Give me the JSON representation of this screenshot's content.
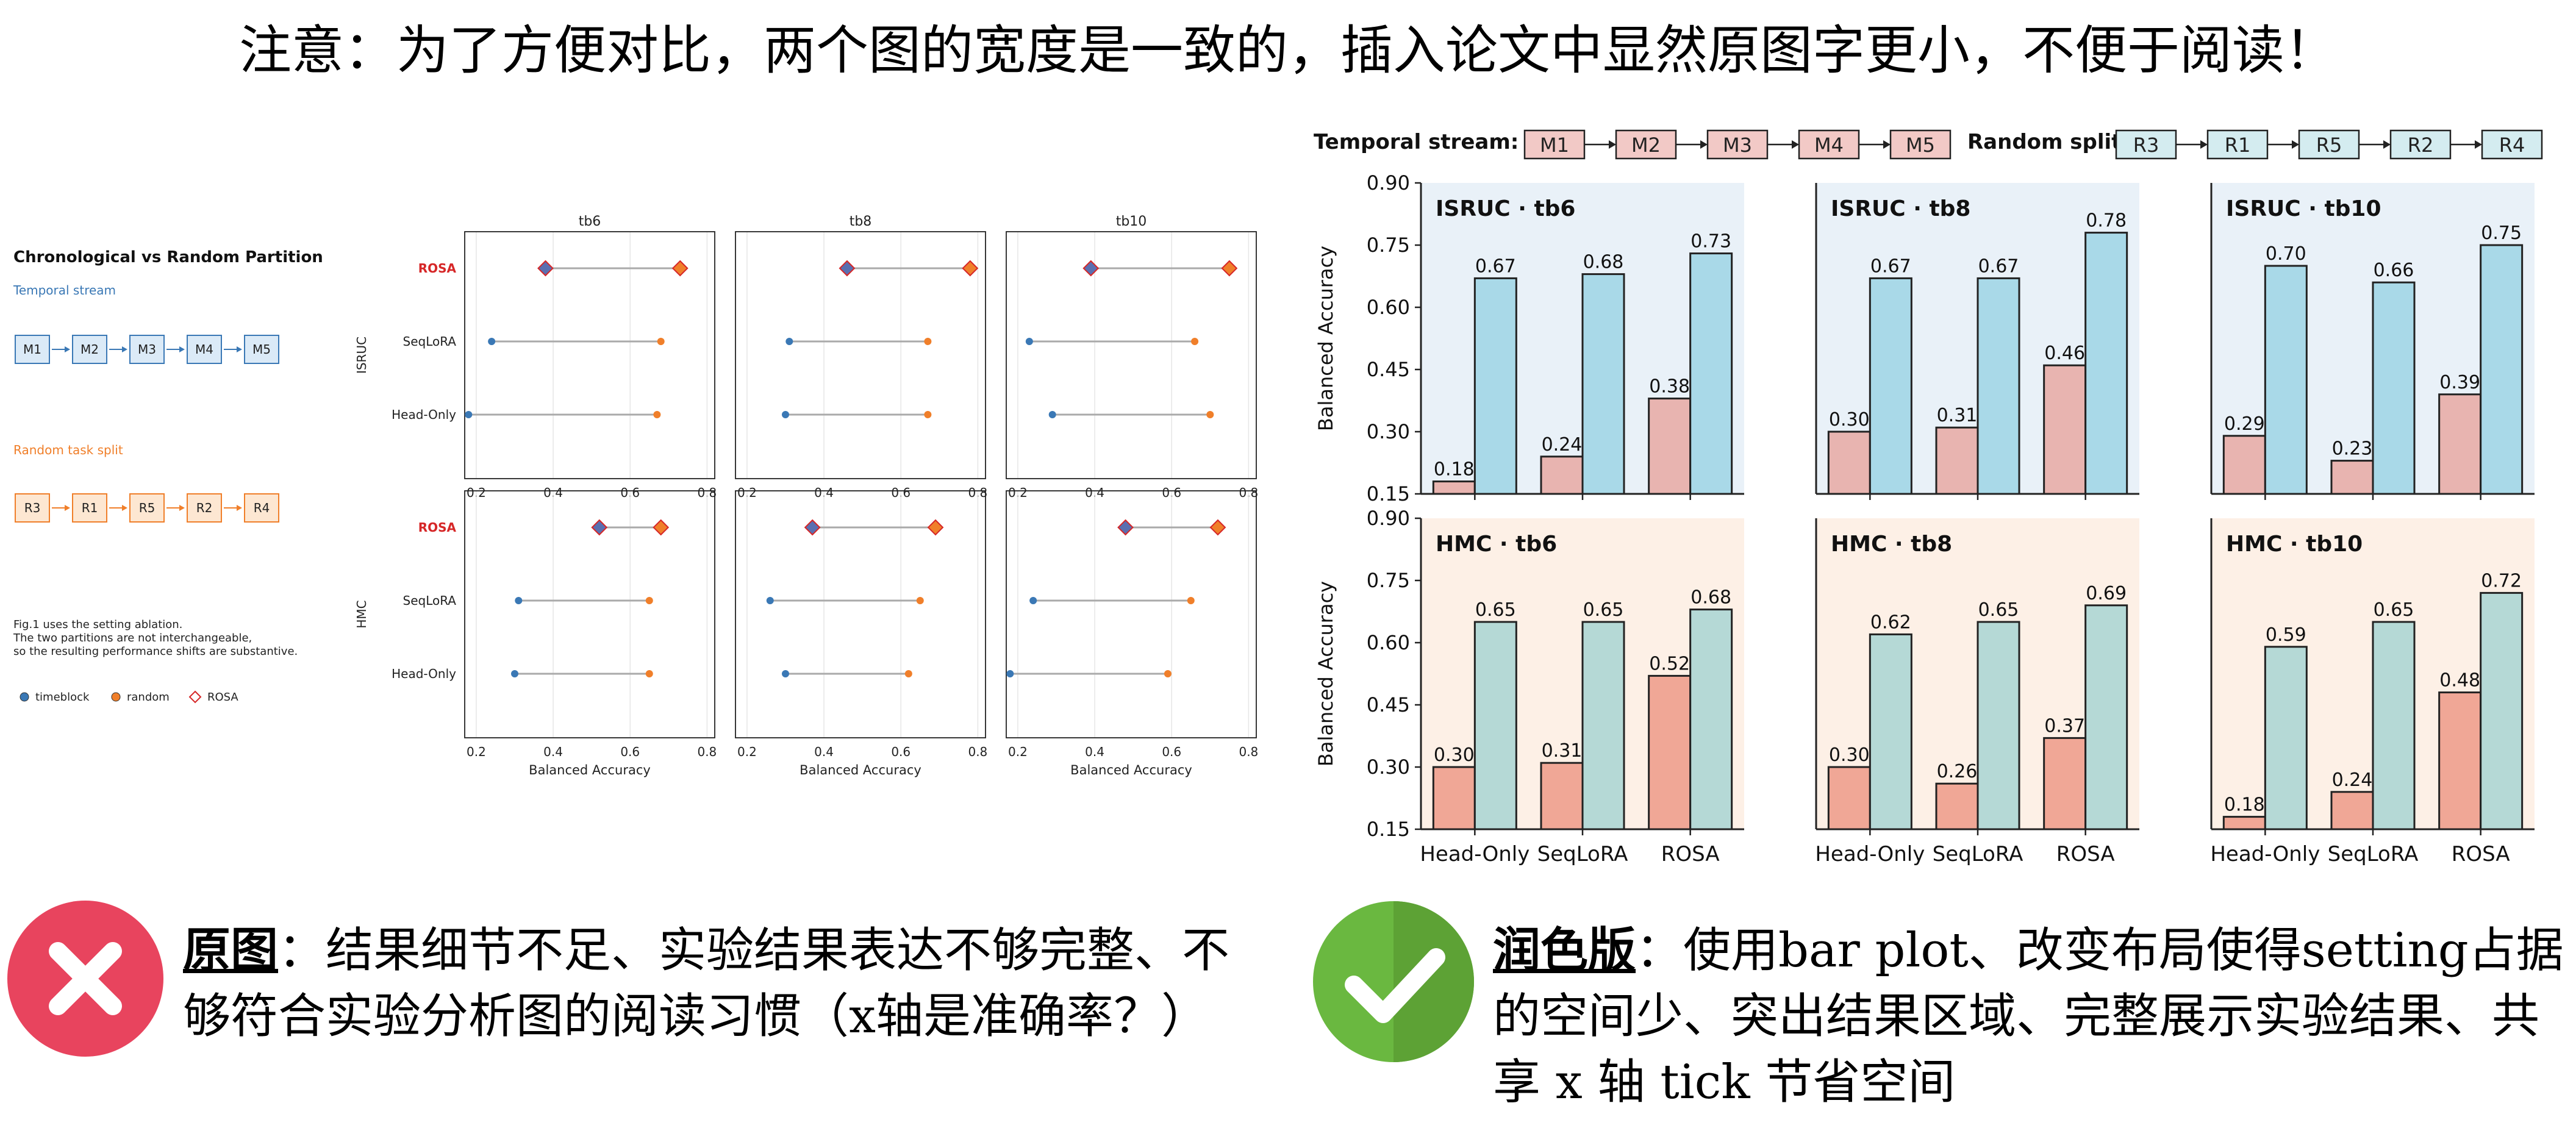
{
  "header": {
    "note": "注意：为了方便对比，两个图的宽度是一致的，插入论文中显然原图字更小，不便于阅读！"
  },
  "left_figure": {
    "title": "Chronological vs Random Partition",
    "temporal_label": "Temporal stream",
    "temporal_items": [
      "M1",
      "M2",
      "M3",
      "M4",
      "M5"
    ],
    "random_label": "Random task split",
    "random_items": [
      "R3",
      "R1",
      "R5",
      "R2",
      "R4"
    ],
    "note_lines": [
      "Fig.1 uses the setting ablation.",
      "The two partitions are not interchangeable,",
      "so the resulting performance shifts are substantive."
    ],
    "legend": [
      "timeblock",
      "random",
      "ROSA"
    ],
    "col_titles": [
      "tb6",
      "tb8",
      "tb10"
    ],
    "row_labels": [
      "ISRUC",
      "HMC"
    ],
    "method_labels": [
      "ROSA",
      "SeqLoRA",
      "Head-Only"
    ],
    "xlabel": "Balanced Accuracy",
    "xticks": [
      "0.2",
      "0.4",
      "0.6",
      "0.8"
    ]
  },
  "right_figure": {
    "temporal_label": "Temporal stream:",
    "temporal_items": [
      "M1",
      "M2",
      "M3",
      "M4",
      "M5"
    ],
    "random_label": "Random split:",
    "random_items": [
      "R3",
      "R1",
      "R5",
      "R2",
      "R4"
    ],
    "ylabel": "Balanced Accuracy",
    "yticks": [
      "0.15",
      "0.30",
      "0.45",
      "0.60",
      "0.75",
      "0.90"
    ],
    "categories": [
      "Head-Only",
      "SeqLoRA",
      "ROSA"
    ],
    "panel_titles": [
      [
        "ISRUC · tb6",
        "ISRUC · tb8",
        "ISRUC · tb10"
      ],
      [
        "HMC · tb6",
        "HMC · tb8",
        "HMC · tb10"
      ]
    ]
  },
  "chart_data": [
    {
      "type": "scatter",
      "title": "Chronological vs Random Partition",
      "xlabel": "Balanced Accuracy",
      "xlim": [
        0.17,
        0.82
      ],
      "categories": [
        "ROSA",
        "SeqLoRA",
        "Head-Only"
      ],
      "panels": [
        {
          "row": "ISRUC",
          "col": "tb6",
          "timeblock": [
            0.38,
            0.24,
            0.18
          ],
          "random": [
            0.73,
            0.68,
            0.67
          ]
        },
        {
          "row": "ISRUC",
          "col": "tb8",
          "timeblock": [
            0.46,
            0.31,
            0.3
          ],
          "random": [
            0.78,
            0.67,
            0.67
          ]
        },
        {
          "row": "ISRUC",
          "col": "tb10",
          "timeblock": [
            0.39,
            0.23,
            0.29
          ],
          "random": [
            0.75,
            0.66,
            0.7
          ]
        },
        {
          "row": "HMC",
          "col": "tb6",
          "timeblock": [
            0.52,
            0.31,
            0.3
          ],
          "random": [
            0.68,
            0.65,
            0.65
          ]
        },
        {
          "row": "HMC",
          "col": "tb8",
          "timeblock": [
            0.37,
            0.26,
            0.3
          ],
          "random": [
            0.69,
            0.65,
            0.62
          ]
        },
        {
          "row": "HMC",
          "col": "tb10",
          "timeblock": [
            0.48,
            0.24,
            0.18
          ],
          "random": [
            0.72,
            0.65,
            0.59
          ]
        }
      ],
      "legend": [
        "timeblock",
        "random",
        "ROSA"
      ]
    },
    {
      "type": "bar",
      "ylabel": "Balanced Accuracy",
      "ylim": [
        0.15,
        0.9
      ],
      "categories": [
        "Head-Only",
        "SeqLoRA",
        "ROSA"
      ],
      "panels": [
        {
          "title": "ISRUC · tb6",
          "timeblock": [
            0.18,
            0.24,
            0.38
          ],
          "random": [
            0.67,
            0.68,
            0.73
          ]
        },
        {
          "title": "ISRUC · tb8",
          "timeblock": [
            0.3,
            0.31,
            0.46
          ],
          "random": [
            0.67,
            0.67,
            0.78
          ]
        },
        {
          "title": "ISRUC · tb10",
          "timeblock": [
            0.29,
            0.23,
            0.39
          ],
          "random": [
            0.7,
            0.66,
            0.75
          ]
        },
        {
          "title": "HMC · tb6",
          "timeblock": [
            0.3,
            0.31,
            0.52
          ],
          "random": [
            0.65,
            0.65,
            0.68
          ]
        },
        {
          "title": "HMC · tb8",
          "timeblock": [
            0.3,
            0.26,
            0.37
          ],
          "random": [
            0.62,
            0.65,
            0.69
          ]
        },
        {
          "title": "HMC · tb10",
          "timeblock": [
            0.18,
            0.24,
            0.48
          ],
          "random": [
            0.59,
            0.65,
            0.72
          ]
        }
      ]
    }
  ],
  "captions": {
    "left_title": "原图",
    "left_text": "：结果细节不足、实验结果表达不够完整、不够符合实验分析图的阅读习惯（x轴是准确率？）",
    "right_title": "润色版",
    "right_text": "：使用bar plot、改变布局使得setting占据的空间少、突出结果区域、完整展示实验结果、共享 x 轴 tick 节省空间"
  },
  "colors": {
    "timeblock": "#3a78b5",
    "random": "#f07f2a",
    "rosa_red": "#d62728",
    "bar_tb_isruc": "#e8b4b0",
    "bar_rand_isruc": "#a9d9e8",
    "bar_tb_hmc": "#f0a796",
    "bar_rand_hmc": "#b5d9d6",
    "panel_bg_isruc": "#e9f1f8",
    "panel_bg_hmc": "#fdf0e6",
    "bad": "#e8445e",
    "good": "#6ab840"
  }
}
